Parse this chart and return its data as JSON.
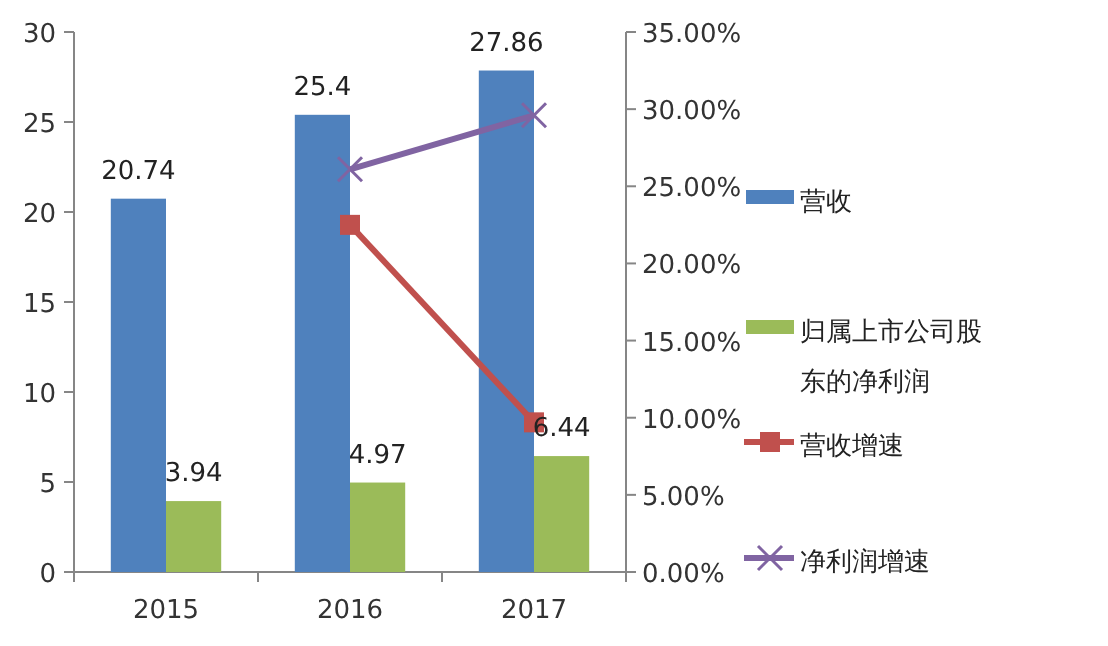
{
  "chart_data": {
    "type": "bar",
    "categories": [
      "2015",
      "2016",
      "2017"
    ],
    "series": [
      {
        "name": "营收",
        "color": "#4f81bd",
        "values": [
          20.74,
          25.4,
          27.86
        ],
        "value_labels": [
          "20.74",
          "25.4",
          "27.86"
        ]
      },
      {
        "name": "归属上市公司股东的净利润",
        "color": "#9bbb59",
        "values": [
          3.94,
          4.97,
          6.44
        ],
        "value_labels": [
          "3.94",
          "4.97",
          "6.44"
        ]
      },
      {
        "name": "营收增速",
        "type": "line",
        "axis": "y2",
        "color": "#c0504d",
        "marker": "square",
        "values": [
          null,
          22.5,
          9.7
        ]
      },
      {
        "name": "净利润增速",
        "type": "line",
        "axis": "y2",
        "color": "#8064a2",
        "marker": "cross",
        "values": [
          null,
          26.1,
          29.6
        ]
      }
    ],
    "ylim": [
      0,
      30
    ],
    "yticks": [
      0,
      5,
      10,
      15,
      20,
      25,
      30
    ],
    "y2lim": [
      0,
      35
    ],
    "y2ticks": [
      {
        "value": 0,
        "label": "0.00%"
      },
      {
        "value": 5,
        "label": "5.00%"
      },
      {
        "value": 10,
        "label": "10.00%"
      },
      {
        "value": 15,
        "label": "15.00%"
      },
      {
        "value": 20,
        "label": "20.00%"
      },
      {
        "value": 25,
        "label": "25.00%"
      },
      {
        "value": 30,
        "label": "30.00%"
      },
      {
        "value": 35,
        "label": "35.00%"
      }
    ],
    "legend": "right",
    "grid": false
  }
}
